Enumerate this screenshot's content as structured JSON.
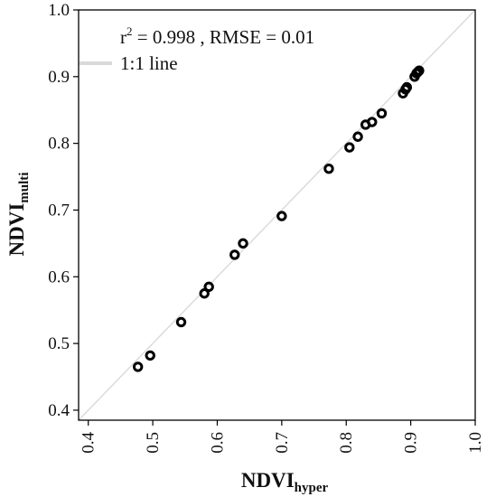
{
  "chart_data": {
    "type": "scatter",
    "xlabel": {
      "main": "NDVI",
      "sub": "hyper"
    },
    "ylabel": {
      "main": "NDVI",
      "sub": "multi"
    },
    "xlim": [
      0.385,
      1.0
    ],
    "ylim": [
      0.385,
      1.0
    ],
    "x_ticks": [
      "0.4",
      "0.5",
      "0.6",
      "0.7",
      "0.8",
      "0.9",
      "1.0"
    ],
    "y_ticks": [
      "0.4",
      "0.5",
      "0.6",
      "0.7",
      "0.8",
      "0.9",
      "1.0"
    ],
    "grid": false,
    "annotation": {
      "r_prefix": "r",
      "r_sup": "2",
      "r_rest": " = 0.998 , RMSE = 0.01"
    },
    "legend": {
      "position": "top-left",
      "entries": [
        "1:1 line"
      ]
    },
    "reference_line": {
      "label": "1:1 line",
      "color": "#d9d9d9"
    },
    "marker_color": "#000000",
    "points": [
      [
        0.477,
        0.465
      ],
      [
        0.496,
        0.482
      ],
      [
        0.544,
        0.532
      ],
      [
        0.58,
        0.575
      ],
      [
        0.587,
        0.585
      ],
      [
        0.627,
        0.633
      ],
      [
        0.64,
        0.65
      ],
      [
        0.7,
        0.691
      ],
      [
        0.773,
        0.762
      ],
      [
        0.805,
        0.794
      ],
      [
        0.818,
        0.81
      ],
      [
        0.83,
        0.828
      ],
      [
        0.84,
        0.832
      ],
      [
        0.855,
        0.845
      ],
      [
        0.888,
        0.875
      ],
      [
        0.892,
        0.881
      ],
      [
        0.894,
        0.884
      ],
      [
        0.906,
        0.9
      ],
      [
        0.909,
        0.905
      ],
      [
        0.911,
        0.907
      ],
      [
        0.913,
        0.909
      ]
    ]
  }
}
